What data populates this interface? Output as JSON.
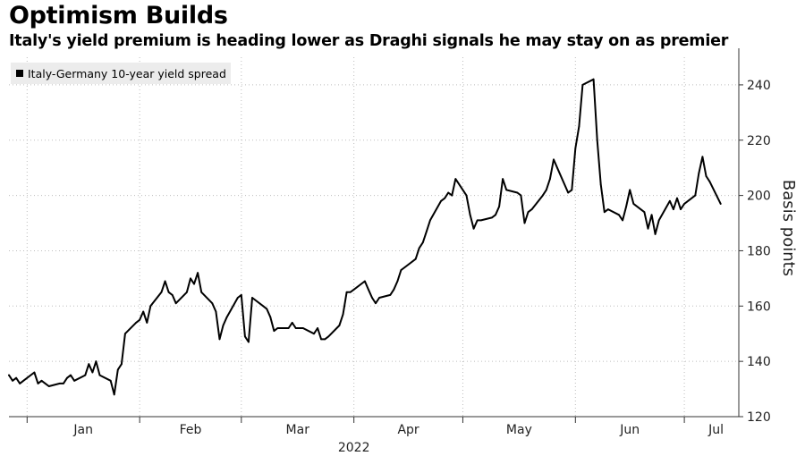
{
  "title": "Optimism Builds",
  "subtitle": "Italy's yield premium is heading lower as Draghi signals he may stay on as premier",
  "chart_data": {
    "type": "line",
    "title": "Optimism Builds",
    "subtitle": "Italy's yield premium is heading lower as Draghi signals he may stay on as premier",
    "ylabel": "Basis points",
    "xlabel": "",
    "year_label": "2022",
    "ylim": [
      120,
      250
    ],
    "yticks": [
      120,
      140,
      160,
      180,
      200,
      220,
      240
    ],
    "y_axis_position": "right",
    "grid": "dotted",
    "legend_position": "top-left",
    "months": [
      "Jan",
      "Feb",
      "Mar",
      "Apr",
      "May",
      "Jun",
      "Jul"
    ],
    "series": [
      {
        "name": "Italy-Germany 10-year yield spread",
        "color": "#000000",
        "points": [
          [
            "2021-12-27",
            135
          ],
          [
            "2021-12-28",
            133
          ],
          [
            "2021-12-29",
            134
          ],
          [
            "2021-12-30",
            132
          ],
          [
            "2021-12-31",
            133
          ],
          [
            "2022-01-03",
            136
          ],
          [
            "2022-01-04",
            132
          ],
          [
            "2022-01-05",
            133
          ],
          [
            "2022-01-06",
            132
          ],
          [
            "2022-01-07",
            131
          ],
          [
            "2022-01-10",
            132
          ],
          [
            "2022-01-11",
            132
          ],
          [
            "2022-01-12",
            134
          ],
          [
            "2022-01-13",
            135
          ],
          [
            "2022-01-14",
            133
          ],
          [
            "2022-01-17",
            135
          ],
          [
            "2022-01-18",
            139
          ],
          [
            "2022-01-19",
            136
          ],
          [
            "2022-01-20",
            140
          ],
          [
            "2022-01-21",
            135
          ],
          [
            "2022-01-24",
            133
          ],
          [
            "2022-01-25",
            128
          ],
          [
            "2022-01-26",
            137
          ],
          [
            "2022-01-27",
            139
          ],
          [
            "2022-01-28",
            150
          ],
          [
            "2022-01-31",
            154
          ],
          [
            "2022-02-01",
            155
          ],
          [
            "2022-02-02",
            158
          ],
          [
            "2022-02-03",
            154
          ],
          [
            "2022-02-04",
            160
          ],
          [
            "2022-02-07",
            165
          ],
          [
            "2022-02-08",
            169
          ],
          [
            "2022-02-09",
            165
          ],
          [
            "2022-02-10",
            164
          ],
          [
            "2022-02-11",
            161
          ],
          [
            "2022-02-14",
            165
          ],
          [
            "2022-02-15",
            170
          ],
          [
            "2022-02-16",
            168
          ],
          [
            "2022-02-17",
            172
          ],
          [
            "2022-02-18",
            165
          ],
          [
            "2022-02-21",
            161
          ],
          [
            "2022-02-22",
            158
          ],
          [
            "2022-02-23",
            148
          ],
          [
            "2022-02-24",
            153
          ],
          [
            "2022-02-25",
            156
          ],
          [
            "2022-02-28",
            163
          ],
          [
            "2022-03-01",
            164
          ],
          [
            "2022-03-02",
            149
          ],
          [
            "2022-03-03",
            147
          ],
          [
            "2022-03-04",
            163
          ],
          [
            "2022-03-07",
            160
          ],
          [
            "2022-03-08",
            159
          ],
          [
            "2022-03-09",
            156
          ],
          [
            "2022-03-10",
            151
          ],
          [
            "2022-03-11",
            152
          ],
          [
            "2022-03-14",
            152
          ],
          [
            "2022-03-15",
            154
          ],
          [
            "2022-03-16",
            152
          ],
          [
            "2022-03-17",
            152
          ],
          [
            "2022-03-18",
            152
          ],
          [
            "2022-03-21",
            150
          ],
          [
            "2022-03-22",
            152
          ],
          [
            "2022-03-23",
            148
          ],
          [
            "2022-03-24",
            148
          ],
          [
            "2022-03-25",
            149
          ],
          [
            "2022-03-28",
            153
          ],
          [
            "2022-03-29",
            157
          ],
          [
            "2022-03-30",
            165
          ],
          [
            "2022-03-31",
            165
          ],
          [
            "2022-04-01",
            166
          ],
          [
            "2022-04-04",
            169
          ],
          [
            "2022-04-05",
            166
          ],
          [
            "2022-04-06",
            163
          ],
          [
            "2022-04-07",
            161
          ],
          [
            "2022-04-08",
            163
          ],
          [
            "2022-04-11",
            164
          ],
          [
            "2022-04-12",
            166
          ],
          [
            "2022-04-13",
            169
          ],
          [
            "2022-04-14",
            173
          ],
          [
            "2022-04-15",
            174
          ],
          [
            "2022-04-18",
            177
          ],
          [
            "2022-04-19",
            181
          ],
          [
            "2022-04-20",
            183
          ],
          [
            "2022-04-21",
            187
          ],
          [
            "2022-04-22",
            191
          ],
          [
            "2022-04-25",
            198
          ],
          [
            "2022-04-26",
            199
          ],
          [
            "2022-04-27",
            201
          ],
          [
            "2022-04-28",
            200
          ],
          [
            "2022-04-29",
            206
          ],
          [
            "2022-05-02",
            200
          ],
          [
            "2022-05-03",
            193
          ],
          [
            "2022-05-04",
            188
          ],
          [
            "2022-05-05",
            191
          ],
          [
            "2022-05-06",
            191
          ],
          [
            "2022-05-09",
            192
          ],
          [
            "2022-05-10",
            193
          ],
          [
            "2022-05-11",
            196
          ],
          [
            "2022-05-12",
            206
          ],
          [
            "2022-05-13",
            202
          ],
          [
            "2022-05-16",
            201
          ],
          [
            "2022-05-17",
            200
          ],
          [
            "2022-05-18",
            190
          ],
          [
            "2022-05-19",
            194
          ],
          [
            "2022-05-20",
            195
          ],
          [
            "2022-05-23",
            200
          ],
          [
            "2022-05-24",
            202
          ],
          [
            "2022-05-25",
            206
          ],
          [
            "2022-05-26",
            213
          ],
          [
            "2022-05-27",
            210
          ],
          [
            "2022-05-30",
            201
          ],
          [
            "2022-05-31",
            202
          ],
          [
            "2022-06-01",
            217
          ],
          [
            "2022-06-02",
            225
          ],
          [
            "2022-06-03",
            240
          ],
          [
            "2022-06-06",
            242
          ],
          [
            "2022-06-07",
            220
          ],
          [
            "2022-06-08",
            204
          ],
          [
            "2022-06-09",
            194
          ],
          [
            "2022-06-10",
            195
          ],
          [
            "2022-06-13",
            193
          ],
          [
            "2022-06-14",
            191
          ],
          [
            "2022-06-15",
            196
          ],
          [
            "2022-06-16",
            202
          ],
          [
            "2022-06-17",
            197
          ],
          [
            "2022-06-20",
            194
          ],
          [
            "2022-06-21",
            188
          ],
          [
            "2022-06-22",
            193
          ],
          [
            "2022-06-23",
            186
          ],
          [
            "2022-06-24",
            191
          ],
          [
            "2022-06-27",
            198
          ],
          [
            "2022-06-28",
            195
          ],
          [
            "2022-06-29",
            199
          ],
          [
            "2022-06-30",
            195
          ],
          [
            "2022-07-01",
            197
          ],
          [
            "2022-07-04",
            200
          ],
          [
            "2022-07-05",
            208
          ],
          [
            "2022-07-06",
            214
          ],
          [
            "2022-07-07",
            207
          ],
          [
            "2022-07-08",
            205
          ],
          [
            "2022-07-11",
            197
          ]
        ]
      }
    ]
  }
}
